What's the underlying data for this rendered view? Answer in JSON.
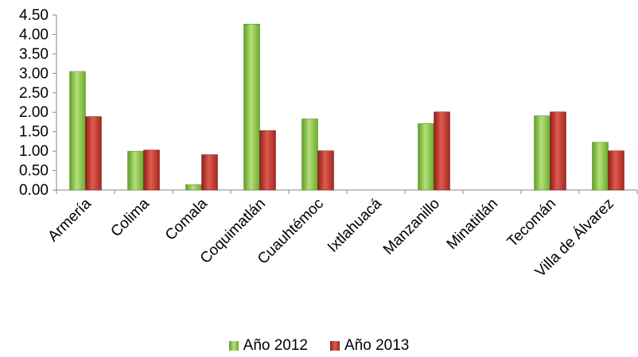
{
  "chart_data": {
    "type": "bar",
    "categories": [
      "Armería",
      "Colima",
      "Comala",
      "Coquimatlán",
      "Cuauhtémoc",
      "Ixtlahuacá",
      "Manzanillo",
      "Minatitlán",
      "Tecomán",
      "Villa de Álvarez"
    ],
    "series": [
      {
        "name": "Año 2012",
        "color": "#7fc241",
        "values": [
          3.05,
          1.0,
          0.14,
          4.27,
          1.83,
          0,
          1.71,
          0,
          1.91,
          1.23
        ]
      },
      {
        "name": "Año 2013",
        "color": "#c0392b",
        "values": [
          1.89,
          1.03,
          0.91,
          1.53,
          1.01,
          0,
          2.01,
          0,
          2.01,
          1.01
        ]
      }
    ],
    "ylim": [
      0,
      4.5
    ],
    "yticks": [
      "0.00",
      "0.50",
      "1.00",
      "1.50",
      "2.00",
      "2.50",
      "3.00",
      "3.50",
      "4.00",
      "4.50"
    ],
    "grid": false,
    "legend_position": "bottom"
  }
}
